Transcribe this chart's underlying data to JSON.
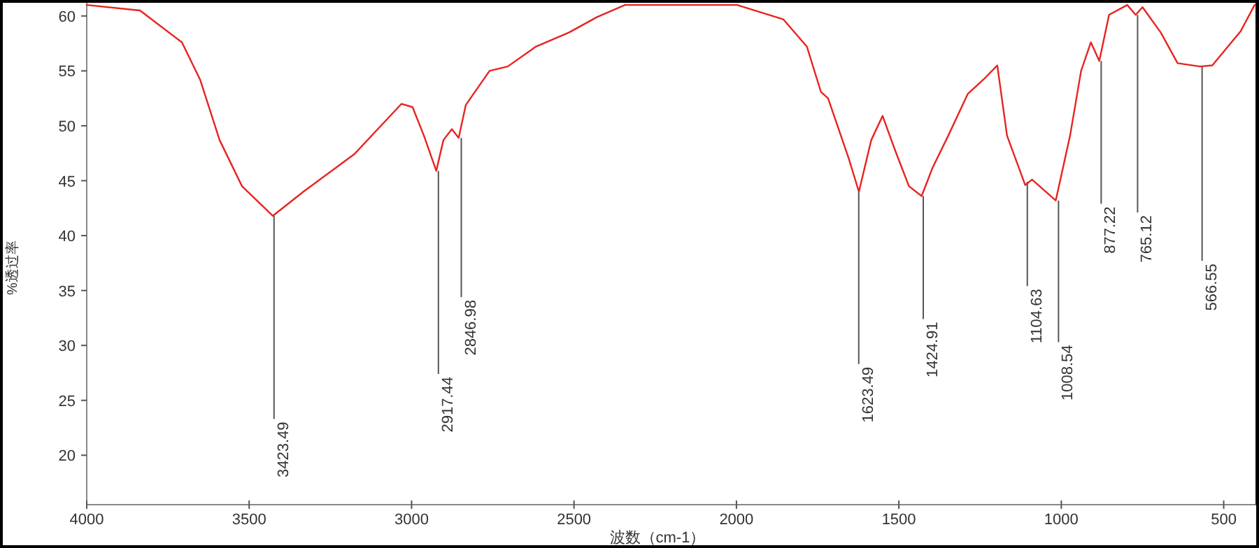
{
  "chart_data": {
    "type": "line",
    "xlabel": "波数（cm-1）",
    "ylabel": "%透过率",
    "xlim": [
      4000,
      400
    ],
    "ylim": [
      15.5,
      61.2
    ],
    "xticks": [
      4000,
      3500,
      3000,
      2500,
      2000,
      1500,
      1000,
      500
    ],
    "yticks": [
      20,
      25,
      30,
      35,
      40,
      45,
      50,
      55,
      60
    ],
    "x": [
      4000,
      3836,
      3707,
      3651,
      3591,
      3522,
      3427,
      3333,
      3177,
      3031,
      2997,
      2962,
      2924,
      2902,
      2876,
      2855,
      2833,
      2760,
      2704,
      2618,
      2515,
      2429,
      2343,
      2330,
      1998,
      1856,
      1783,
      1740,
      1718,
      1654,
      1623,
      1585,
      1550,
      1512,
      1469,
      1430,
      1396,
      1348,
      1288,
      1240,
      1197,
      1167,
      1111,
      1090,
      1017,
      973,
      939,
      909,
      883,
      853,
      797,
      771,
      750,
      694,
      642,
      573,
      535,
      448,
      405
    ],
    "series": [
      {
        "color": "#e8231f",
        "values": [
          61.0,
          60.5,
          57.6,
          54.2,
          48.7,
          44.5,
          41.8,
          44.0,
          47.4,
          52.0,
          51.7,
          49.1,
          45.9,
          48.7,
          49.7,
          48.9,
          51.9,
          55.0,
          55.4,
          57.2,
          58.5,
          59.9,
          61.0,
          61.0,
          61.0,
          59.7,
          57.2,
          53.1,
          52.5,
          47.0,
          44.0,
          48.7,
          50.9,
          47.8,
          44.5,
          43.6,
          46.2,
          49.1,
          52.9,
          54.2,
          55.5,
          49.1,
          44.6,
          45.1,
          43.2,
          49.1,
          55.0,
          57.6,
          55.9,
          60.1,
          61.0,
          60.1,
          60.8,
          58.5,
          55.7,
          55.4,
          55.5,
          58.6,
          61.0
        ]
      }
    ],
    "line_style": "solid",
    "annotations": [
      {
        "text": "3423.49",
        "x": 3423.49,
        "y": 41.8
      },
      {
        "text": "2917.44",
        "x": 2917.44,
        "y": 45.9
      },
      {
        "text": "2846.98",
        "x": 2846.98,
        "y": 48.9
      },
      {
        "text": "1623.49",
        "x": 1623.49,
        "y": 44.0
      },
      {
        "text": "1424.91",
        "x": 1424.91,
        "y": 43.6
      },
      {
        "text": "1104.63",
        "x": 1104.63,
        "y": 44.9
      },
      {
        "text": "1008.54",
        "x": 1008.54,
        "y": 43.2
      },
      {
        "text": "877.22",
        "x": 877.22,
        "y": 55.9
      },
      {
        "text": "765.12",
        "x": 765.12,
        "y": 60.1
      },
      {
        "text": "566.55",
        "x": 566.55,
        "y": 55.4
      }
    ]
  }
}
